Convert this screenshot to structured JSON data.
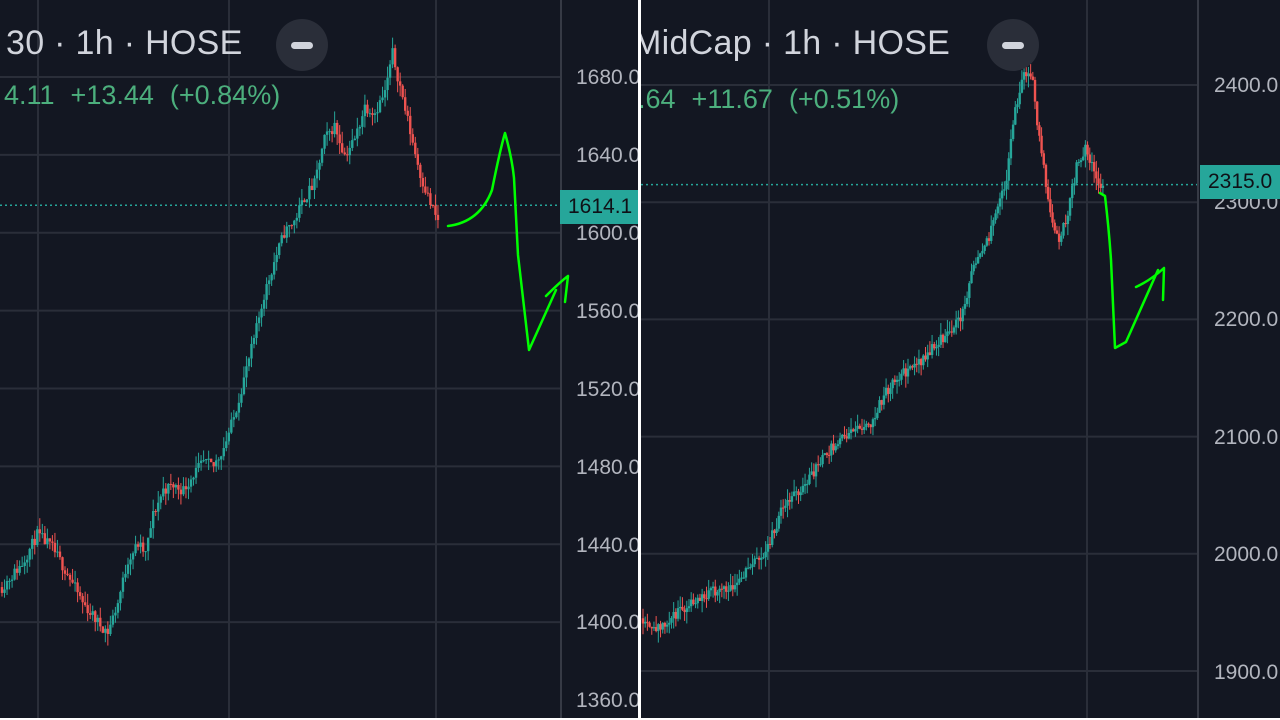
{
  "colors": {
    "background": "#131722",
    "grid": "#2a2e39",
    "up": "#26a69a",
    "down": "#ef5350",
    "annotation": "#00ff00",
    "price_tag": "#26a69a",
    "change_text": "#4caf7d"
  },
  "charts": {
    "left": {
      "title": "30 · 1h · HOSE",
      "last_value": "4.11",
      "change": "+13.44",
      "change_pct": "(+0.84%)",
      "price_tag": "1614.1",
      "ticks": [
        "1680.0",
        "1640.0",
        "1600.0",
        "1560.0",
        "1520.0",
        "1480.0",
        "1440.0",
        "1400.0",
        "1360.0"
      ]
    },
    "right": {
      "title": "MidCap · 1h · HOSE",
      "last_value": ".64",
      "change": "+11.67",
      "change_pct": "(+0.51%)",
      "price_tag": "2315.0",
      "ticks": [
        "2400.0",
        "2300.0",
        "2200.0",
        "2100.0",
        "2000.0",
        "1900.0"
      ]
    }
  },
  "chart_data": [
    {
      "type": "candlestick",
      "timeframe": "1h",
      "exchange": "HOSE",
      "ylim": [
        1360,
        1680
      ],
      "last_price": 1614.1,
      "close_path": [
        [
          0,
          1418
        ],
        [
          8,
          1430
        ],
        [
          14,
          1445
        ],
        [
          20,
          1438
        ],
        [
          26,
          1425
        ],
        [
          32,
          1410
        ],
        [
          38,
          1400
        ],
        [
          42,
          1395
        ],
        [
          46,
          1410
        ],
        [
          50,
          1432
        ],
        [
          54,
          1440
        ],
        [
          57,
          1435
        ],
        [
          60,
          1455
        ],
        [
          64,
          1468
        ],
        [
          68,
          1470
        ],
        [
          72,
          1468
        ],
        [
          76,
          1476
        ],
        [
          80,
          1482
        ],
        [
          84,
          1480
        ],
        [
          88,
          1490
        ],
        [
          92,
          1505
        ],
        [
          96,
          1525
        ],
        [
          100,
          1545
        ],
        [
          104,
          1568
        ],
        [
          108,
          1585
        ],
        [
          112,
          1600
        ],
        [
          116,
          1606
        ],
        [
          120,
          1618
        ],
        [
          124,
          1625
        ],
        [
          128,
          1648
        ],
        [
          132,
          1655
        ],
        [
          136,
          1640
        ],
        [
          140,
          1648
        ],
        [
          144,
          1665
        ],
        [
          148,
          1662
        ],
        [
          152,
          1672
        ],
        [
          155,
          1692
        ],
        [
          158,
          1675
        ],
        [
          162,
          1652
        ],
        [
          166,
          1630
        ],
        [
          170,
          1615
        ],
        [
          173,
          1606
        ]
      ],
      "grid": true,
      "annotation": "hand-drawn green projection arrow"
    },
    {
      "type": "candlestick",
      "timeframe": "1h",
      "exchange": "HOSE",
      "ylim": [
        1900,
        2400
      ],
      "last_price": 2315.0,
      "close_path": [
        [
          0,
          1945
        ],
        [
          8,
          1935
        ],
        [
          16,
          1950
        ],
        [
          24,
          1962
        ],
        [
          32,
          1968
        ],
        [
          40,
          1972
        ],
        [
          48,
          1988
        ],
        [
          56,
          2002
        ],
        [
          64,
          2040
        ],
        [
          72,
          2055
        ],
        [
          80,
          2075
        ],
        [
          88,
          2095
        ],
        [
          96,
          2105
        ],
        [
          104,
          2112
        ],
        [
          110,
          2135
        ],
        [
          116,
          2150
        ],
        [
          122,
          2158
        ],
        [
          128,
          2165
        ],
        [
          134,
          2180
        ],
        [
          140,
          2190
        ],
        [
          146,
          2205
        ],
        [
          150,
          2240
        ],
        [
          154,
          2260
        ],
        [
          158,
          2268
        ],
        [
          162,
          2300
        ],
        [
          166,
          2320
        ],
        [
          170,
          2380
        ],
        [
          174,
          2412
        ],
        [
          178,
          2400
        ],
        [
          182,
          2340
        ],
        [
          186,
          2290
        ],
        [
          190,
          2270
        ],
        [
          194,
          2290
        ],
        [
          198,
          2330
        ],
        [
          202,
          2345
        ],
        [
          206,
          2325
        ],
        [
          210,
          2312
        ]
      ],
      "grid": true,
      "annotation": "hand-drawn green projection arrow"
    }
  ]
}
